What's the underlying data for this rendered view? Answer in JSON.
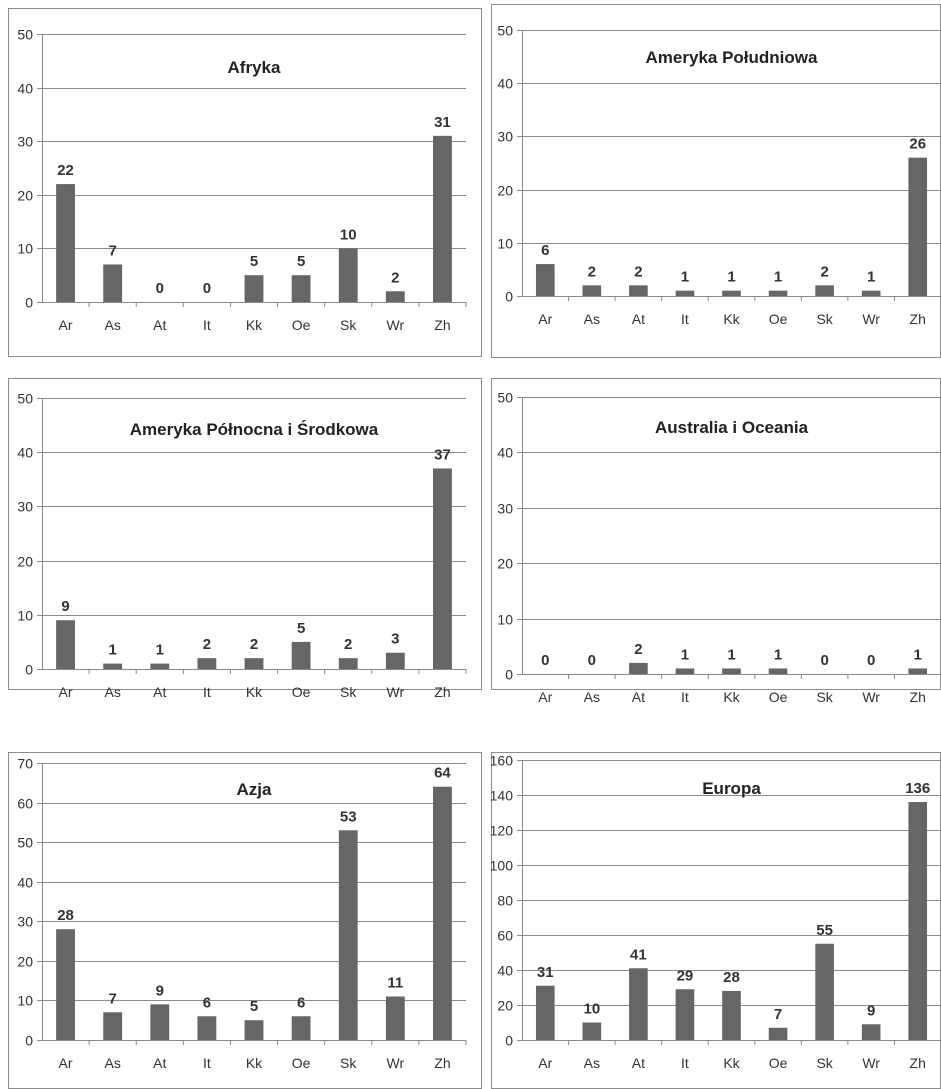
{
  "bar_color": "#666666",
  "chart_data": [
    {
      "type": "bar",
      "title": "Afryka",
      "categories": [
        "Ar",
        "As",
        "At",
        "It",
        "Kk",
        "Oe",
        "Sk",
        "Wr",
        "Zh"
      ],
      "values": [
        22,
        7,
        0,
        0,
        5,
        5,
        10,
        2,
        31
      ],
      "ylim": [
        0,
        50
      ],
      "yticks": [
        0,
        10,
        20,
        30,
        40,
        50
      ],
      "grid": true,
      "xlabel": "",
      "ylabel": ""
    },
    {
      "type": "bar",
      "title": "Ameryka Południowa",
      "categories": [
        "Ar",
        "As",
        "At",
        "It",
        "Kk",
        "Oe",
        "Sk",
        "Wr",
        "Zh"
      ],
      "values": [
        6,
        2,
        2,
        1,
        1,
        1,
        2,
        1,
        26
      ],
      "ylim": [
        0,
        50
      ],
      "yticks": [
        0,
        10,
        20,
        30,
        40,
        50
      ],
      "grid": true,
      "xlabel": "",
      "ylabel": ""
    },
    {
      "type": "bar",
      "title": "Ameryka Północna i Środkowa",
      "categories": [
        "Ar",
        "As",
        "At",
        "It",
        "Kk",
        "Oe",
        "Sk",
        "Wr",
        "Zh"
      ],
      "values": [
        9,
        1,
        1,
        2,
        2,
        5,
        2,
        3,
        37
      ],
      "ylim": [
        0,
        50
      ],
      "yticks": [
        0,
        10,
        20,
        30,
        40,
        50
      ],
      "grid": true,
      "xlabel": "",
      "ylabel": ""
    },
    {
      "type": "bar",
      "title": "Australia i Oceania",
      "categories": [
        "Ar",
        "As",
        "At",
        "It",
        "Kk",
        "Oe",
        "Sk",
        "Wr",
        "Zh"
      ],
      "values": [
        0,
        0,
        2,
        1,
        1,
        1,
        0,
        0,
        1
      ],
      "ylim": [
        0,
        50
      ],
      "yticks": [
        0,
        10,
        20,
        30,
        40,
        50
      ],
      "grid": true,
      "xlabel": "",
      "ylabel": ""
    },
    {
      "type": "bar",
      "title": "Azja",
      "categories": [
        "Ar",
        "As",
        "At",
        "It",
        "Kk",
        "Oe",
        "Sk",
        "Wr",
        "Zh"
      ],
      "values": [
        28,
        7,
        9,
        6,
        5,
        6,
        53,
        11,
        64
      ],
      "ylim": [
        0,
        70
      ],
      "yticks": [
        0,
        10,
        20,
        30,
        40,
        50,
        60,
        70
      ],
      "grid": true,
      "xlabel": "",
      "ylabel": ""
    },
    {
      "type": "bar",
      "title": "Europa",
      "categories": [
        "Ar",
        "As",
        "At",
        "It",
        "Kk",
        "Oe",
        "Sk",
        "Wr",
        "Zh"
      ],
      "values": [
        31,
        10,
        41,
        29,
        28,
        7,
        55,
        9,
        136
      ],
      "ylim": [
        0,
        160
      ],
      "yticks": [
        0,
        20,
        40,
        60,
        80,
        100,
        120,
        140,
        160
      ],
      "grid": true,
      "xlabel": "",
      "ylabel": ""
    }
  ]
}
